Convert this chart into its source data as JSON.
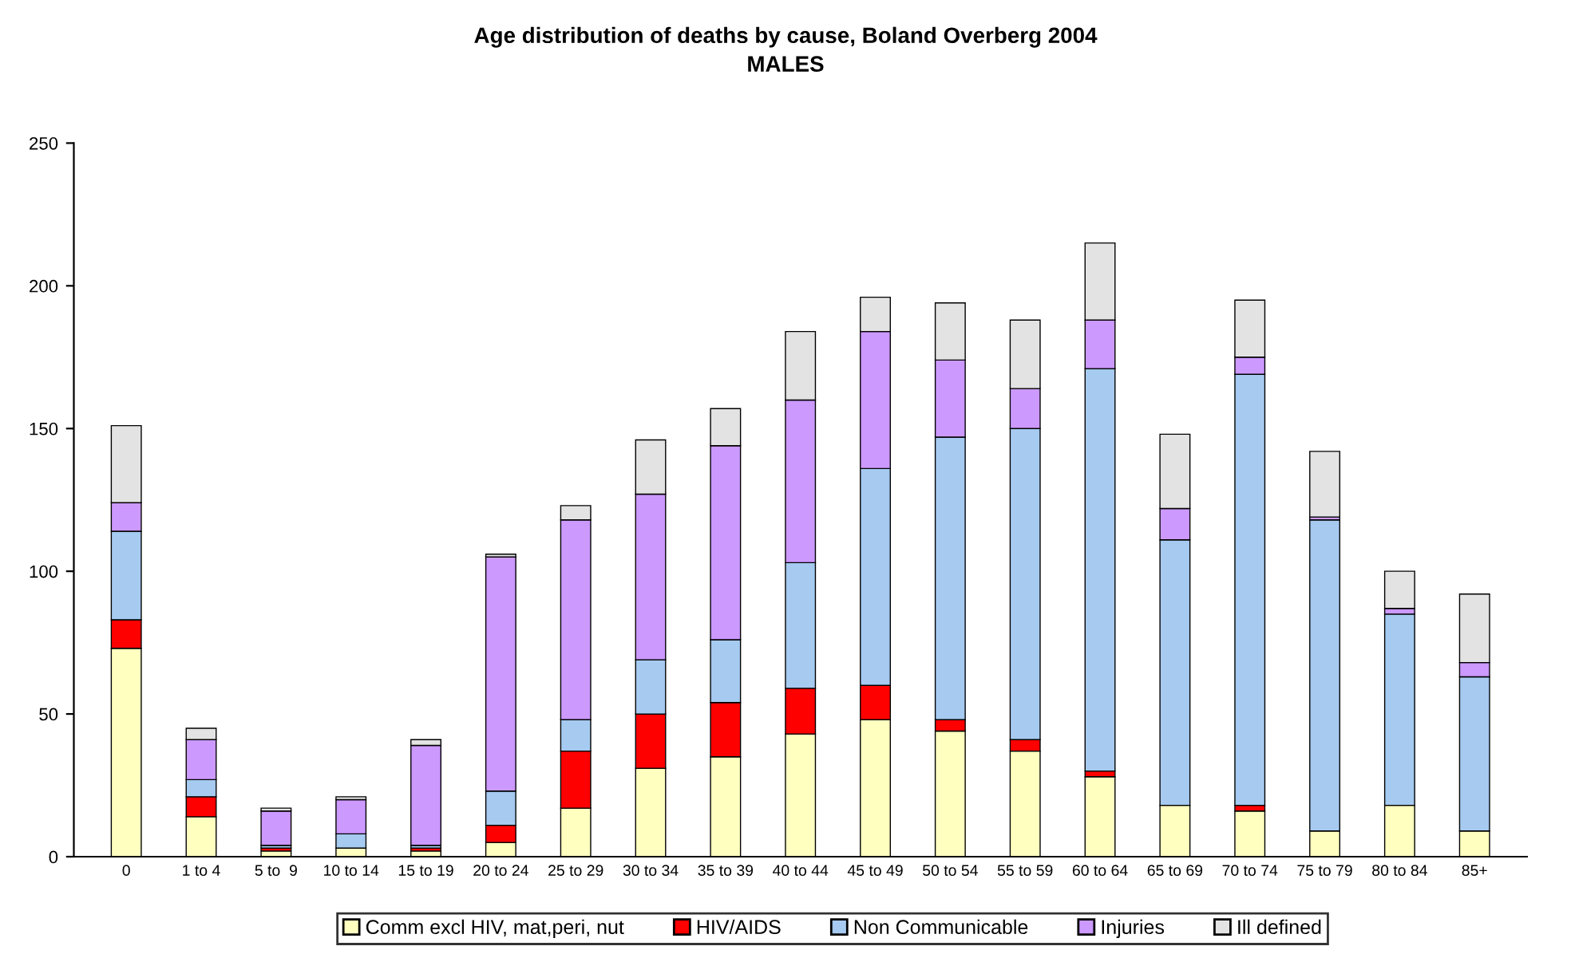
{
  "chart_data": {
    "type": "bar",
    "stacked": true,
    "title": "Age distribution of deaths by cause, Boland Overberg 2004",
    "subtitle": "MALES",
    "categories": [
      "0",
      "1 to 4",
      "5 to  9",
      "10 to 14",
      "15 to 19",
      "20 to 24",
      "25 to 29",
      "30 to 34",
      "35 to 39",
      "40 to 44",
      "45 to 49",
      "50 to 54",
      "55 to 59",
      "60 to 64",
      "65 to 69",
      "70 to 74",
      "75 to 79",
      "80 to 84",
      "85+"
    ],
    "series": [
      {
        "name": "Comm excl HIV, mat,peri, nut",
        "color": "#ffffc0",
        "values": [
          73,
          14,
          2,
          3,
          2,
          5,
          17,
          31,
          35,
          43,
          48,
          44,
          37,
          28,
          18,
          16,
          9,
          18,
          9
        ]
      },
      {
        "name": "HIV/AIDS",
        "color": "#ff0000",
        "values": [
          10,
          7,
          1,
          0,
          1,
          6,
          20,
          19,
          19,
          16,
          12,
          4,
          4,
          2,
          0,
          2,
          0,
          0,
          0
        ]
      },
      {
        "name": "Non Communicable",
        "color": "#a6caf0",
        "values": [
          31,
          6,
          1,
          5,
          1,
          12,
          11,
          19,
          22,
          44,
          76,
          99,
          109,
          141,
          93,
          151,
          109,
          67,
          54
        ]
      },
      {
        "name": "Injuries",
        "color": "#cc99ff",
        "values": [
          10,
          14,
          12,
          12,
          35,
          82,
          70,
          58,
          68,
          57,
          48,
          27,
          14,
          17,
          11,
          6,
          1,
          2,
          5
        ]
      },
      {
        "name": "Ill defined",
        "color": "#e3e3e3",
        "values": [
          27,
          4,
          1,
          1,
          2,
          1,
          5,
          19,
          13,
          24,
          12,
          20,
          24,
          27,
          26,
          20,
          23,
          13,
          24
        ]
      }
    ],
    "ylim": [
      0,
      250
    ],
    "yticks": [
      0,
      50,
      100,
      150,
      200,
      250
    ],
    "grid": false,
    "legend": "bottom"
  }
}
